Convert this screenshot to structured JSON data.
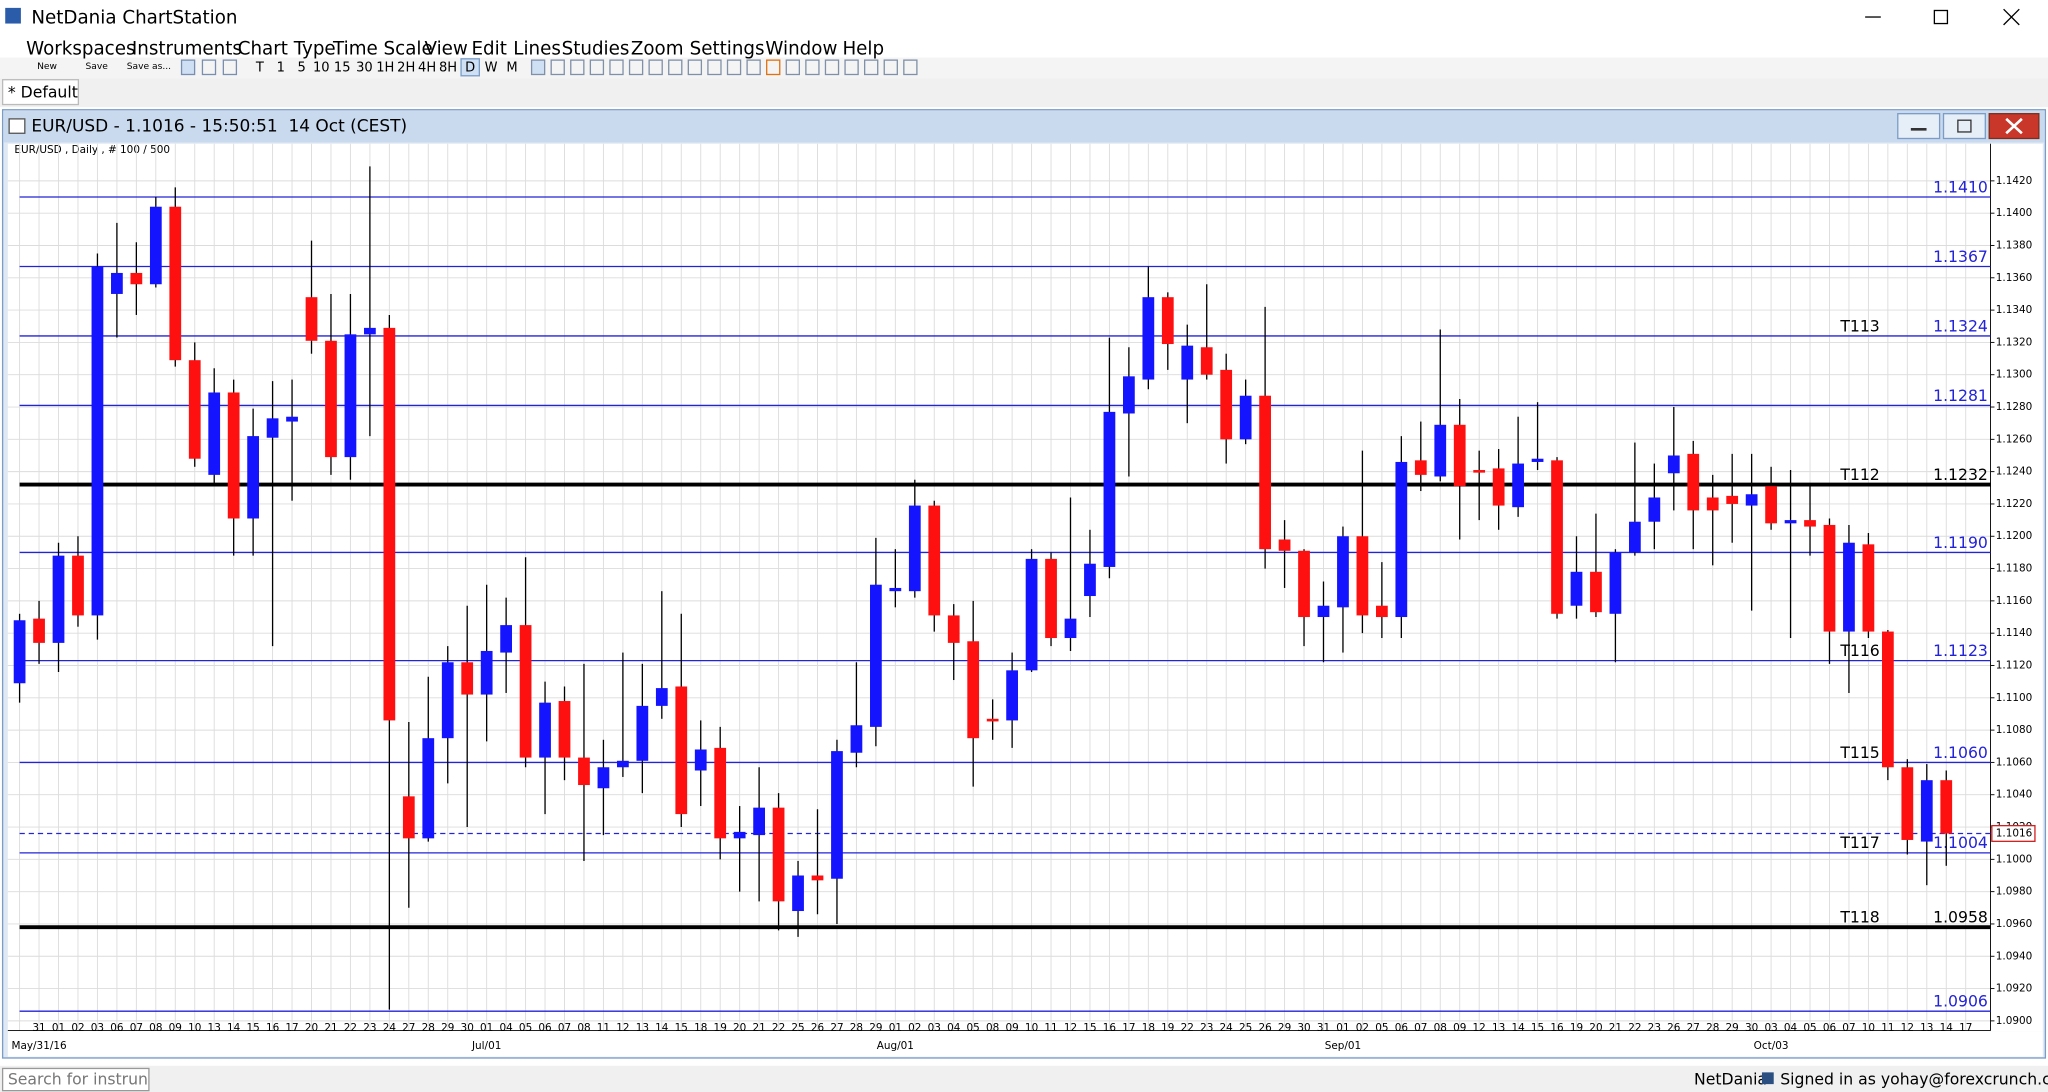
{
  "window": {
    "title": "NetDania ChartStation"
  },
  "menu": [
    "Workspaces",
    "Instruments",
    "Chart Type",
    "Time Scale",
    "View",
    "Edit",
    "Lines",
    "Studies",
    "Zoom",
    "Settings",
    "Window",
    "Help"
  ],
  "toolbar": {
    "file_buttons": [
      "New",
      "Save",
      "Save as..."
    ],
    "intervals": [
      "T",
      "1",
      "5",
      "10",
      "15",
      "30",
      "1H",
      "2H",
      "4H",
      "8H",
      "D",
      "W",
      "M"
    ],
    "active_interval": "D"
  },
  "tab": "* Default",
  "status": {
    "search_placeholder": "Search for instrun",
    "brand": "NetDania",
    "signed_in": "Signed in as yohay@forexcrunch.com"
  },
  "chart_data": {
    "type": "candlestick",
    "title": "EUR/USD - 1.1016 - 15:50:51  14 Oct (CEST)",
    "subtitle": "EUR/USD , Daily , # 100 / 500",
    "categories": [
      null,
      "31",
      "01",
      "02",
      "03",
      "06",
      "07",
      "08",
      "09",
      "10",
      "13",
      "14",
      "15",
      "16",
      "17",
      "20",
      "21",
      "22",
      "23",
      "24",
      "27",
      "28",
      "29",
      "30",
      "01",
      "04",
      "05",
      "06",
      "07",
      "08",
      "11",
      "12",
      "13",
      "14",
      "15",
      "18",
      "19",
      "20",
      "21",
      "22",
      "25",
      "26",
      "27",
      "28",
      "29",
      "01",
      "02",
      "03",
      "04",
      "05",
      "08",
      "09",
      "10",
      "11",
      "12",
      "15",
      "16",
      "17",
      "18",
      "19",
      "22",
      "23",
      "24",
      "25",
      "26",
      "29",
      "30",
      "31",
      "01",
      "02",
      "05",
      "06",
      "07",
      "08",
      "09",
      "12",
      "13",
      "14",
      "15",
      "16",
      "19",
      "20",
      "21",
      "22",
      "23",
      "26",
      "27",
      "28",
      "29",
      "30",
      "03",
      "04",
      "05",
      "06",
      "07",
      "10",
      "11",
      "12",
      "13",
      "14",
      "17"
    ],
    "month_labels": [
      {
        "at": 1,
        "label": "May/31/16"
      },
      {
        "at": 24,
        "label": "Jul/01"
      },
      {
        "at": 45,
        "label": "Aug/01"
      },
      {
        "at": 68,
        "label": "Sep/01"
      },
      {
        "at": 90,
        "label": "Oct/03"
      }
    ],
    "open": [
      1.1109,
      1.1149,
      1.1134,
      1.1188,
      1.1151,
      1.135,
      1.1363,
      1.1356,
      1.1404,
      1.1309,
      1.1238,
      1.1289,
      1.1211,
      1.1261,
      1.1271,
      1.1348,
      1.1321,
      1.1249,
      1.1325,
      1.1329,
      1.1039,
      1.1013,
      1.1075,
      1.1122,
      1.1102,
      1.1128,
      1.1145,
      1.1063,
      1.1098,
      1.1063,
      1.1044,
      1.1057,
      1.1061,
      1.1095,
      1.1107,
      1.1055,
      1.1069,
      1.1013,
      1.1015,
      1.1032,
      1.0968,
      1.099,
      1.0988,
      1.1066,
      1.1082,
      1.1166,
      1.1166,
      1.1219,
      1.1151,
      1.1135,
      1.1087,
      1.1086,
      1.1117,
      1.1186,
      1.1137,
      1.1163,
      1.1181,
      1.1276,
      1.1297,
      1.1348,
      1.1297,
      1.1317,
      1.1303,
      1.126,
      1.1287,
      1.1198,
      1.1191,
      1.115,
      1.1156,
      1.12,
      1.1157,
      1.115,
      1.1247,
      1.1237,
      1.1269,
      1.1241,
      1.1242,
      1.1218,
      1.1246,
      1.1247,
      1.1157,
      1.1178,
      1.1152,
      1.119,
      1.1209,
      1.1239,
      1.1251,
      1.1224,
      1.1225,
      1.1219,
      1.1231,
      1.1208,
      1.121,
      1.1207,
      1.1141,
      1.1195,
      1.1141,
      1.1057,
      1.1011,
      1.1049,
      null
    ],
    "high": [
      1.1152,
      1.116,
      1.1196,
      1.12,
      1.1375,
      1.1394,
      1.1382,
      1.141,
      1.1416,
      1.132,
      1.1304,
      1.1297,
      1.1279,
      1.1296,
      1.1297,
      1.1383,
      1.135,
      1.135,
      1.1429,
      1.1337,
      1.1085,
      1.1113,
      1.1132,
      1.1157,
      1.117,
      1.1162,
      1.1187,
      1.111,
      1.1107,
      1.1121,
      1.1074,
      1.1128,
      1.1121,
      1.1166,
      1.1152,
      1.1086,
      1.1082,
      1.1033,
      1.1057,
      1.1041,
      1.0999,
      1.1031,
      1.1074,
      1.1122,
      1.1199,
      1.1192,
      1.1235,
      1.1222,
      1.1158,
      1.116,
      1.1099,
      1.1128,
      1.1192,
      1.119,
      1.1224,
      1.1204,
      1.1323,
      1.1317,
      1.1367,
      1.1351,
      1.1331,
      1.1356,
      1.1313,
      1.1297,
      1.1342,
      1.121,
      1.1192,
      1.1172,
      1.1206,
      1.1253,
      1.1184,
      1.1262,
      1.1271,
      1.1328,
      1.1285,
      1.1253,
      1.1254,
      1.1274,
      1.1283,
      1.1249,
      1.12,
      1.1214,
      1.1192,
      1.1258,
      1.1245,
      1.128,
      1.1259,
      1.1238,
      1.1251,
      1.1251,
      1.1243,
      1.1241,
      1.1233,
      1.1211,
      1.1207,
      1.1202,
      1.1142,
      1.1062,
      1.1059,
      1.1055,
      null
    ],
    "low": [
      1.1097,
      1.1121,
      1.1116,
      1.1144,
      1.1136,
      1.1323,
      1.1337,
      1.1354,
      1.1305,
      1.1243,
      1.1233,
      1.1188,
      1.1188,
      1.1132,
      1.1222,
      1.1313,
      1.1238,
      1.1235,
      1.1262,
      1.0907,
      1.097,
      1.1011,
      1.1047,
      1.102,
      1.1073,
      1.1103,
      1.1057,
      1.1028,
      1.1049,
      1.0999,
      1.1015,
      1.1051,
      1.1041,
      1.1087,
      1.102,
      1.1033,
      1.1,
      1.098,
      1.0974,
      1.0956,
      1.0952,
      1.0966,
      1.096,
      1.1057,
      1.107,
      1.1156,
      1.1162,
      1.1141,
      1.1111,
      1.1045,
      1.1074,
      1.1069,
      1.1116,
      1.1132,
      1.1129,
      1.115,
      1.1174,
      1.1237,
      1.1291,
      1.1303,
      1.127,
      1.1297,
      1.1245,
      1.1257,
      1.118,
      1.1168,
      1.1132,
      1.1122,
      1.1128,
      1.114,
      1.1137,
      1.1137,
      1.1228,
      1.1234,
      1.1198,
      1.121,
      1.1204,
      1.1212,
      1.1241,
      1.1149,
      1.1149,
      1.115,
      1.1122,
      1.1188,
      1.1192,
      1.1216,
      1.1192,
      1.1182,
      1.1196,
      1.1154,
      1.1204,
      1.1137,
      1.1188,
      1.1121,
      1.1103,
      1.1137,
      1.1049,
      1.1003,
      1.0984,
      1.0996,
      null
    ],
    "close": [
      1.1148,
      1.1134,
      1.1188,
      1.1151,
      1.1367,
      1.1363,
      1.1356,
      1.1404,
      1.1309,
      1.1248,
      1.1289,
      1.1211,
      1.1262,
      1.1273,
      1.1274,
      1.1321,
      1.1249,
      1.1325,
      1.1329,
      1.1086,
      1.1013,
      1.1075,
      1.1122,
      1.1102,
      1.1129,
      1.1145,
      1.1063,
      1.1097,
      1.1063,
      1.1046,
      1.1057,
      1.1061,
      1.1095,
      1.1106,
      1.1028,
      1.1068,
      1.1013,
      1.1017,
      1.1032,
      1.0974,
      1.099,
      1.0987,
      1.1067,
      1.1083,
      1.117,
      1.1168,
      1.1219,
      1.1151,
      1.1134,
      1.1075,
      1.1086,
      1.1117,
      1.1186,
      1.1137,
      1.1149,
      1.1183,
      1.1277,
      1.1299,
      1.1348,
      1.1319,
      1.1318,
      1.13,
      1.126,
      1.1287,
      1.1192,
      1.1191,
      1.115,
      1.1157,
      1.12,
      1.1151,
      1.115,
      1.1246,
      1.1238,
      1.1269,
      1.1231,
      1.124,
      1.1219,
      1.1245,
      1.1248,
      1.1152,
      1.1178,
      1.1153,
      1.119,
      1.1209,
      1.1224,
      1.125,
      1.1216,
      1.1216,
      1.122,
      1.1226,
      1.1208,
      1.121,
      1.1206,
      1.1141,
      1.1196,
      1.1141,
      1.1057,
      1.1012,
      1.1049,
      1.1016,
      null
    ],
    "up_color": "#1414ff",
    "down_color": "#ff1010",
    "ylim": [
      1.0894,
      1.1443
    ],
    "yticks": [
      {
        "value": 1.09,
        "label": "1.0900"
      },
      {
        "value": 1.092,
        "label": "1.0920"
      },
      {
        "value": 1.094,
        "label": "1.0940"
      },
      {
        "value": 1.096,
        "label": "1.0960"
      },
      {
        "value": 1.098,
        "label": "1.0980"
      },
      {
        "value": 1.1,
        "label": "1.1000"
      },
      {
        "value": 1.102,
        "label": "1.1020"
      },
      {
        "value": 1.104,
        "label": "1.1040"
      },
      {
        "value": 1.106,
        "label": "1.1060"
      },
      {
        "value": 1.108,
        "label": "1.1080"
      },
      {
        "value": 1.11,
        "label": "1.1100"
      },
      {
        "value": 1.112,
        "label": "1.1120"
      },
      {
        "value": 1.114,
        "label": "1.1140"
      },
      {
        "value": 1.116,
        "label": "1.1160"
      },
      {
        "value": 1.118,
        "label": "1.1180"
      },
      {
        "value": 1.12,
        "label": "1.1200"
      },
      {
        "value": 1.122,
        "label": "1.1220"
      },
      {
        "value": 1.124,
        "label": "1.1240"
      },
      {
        "value": 1.126,
        "label": "1.1260"
      },
      {
        "value": 1.128,
        "label": "1.1280"
      },
      {
        "value": 1.13,
        "label": "1.1300"
      },
      {
        "value": 1.132,
        "label": "1.1320"
      },
      {
        "value": 1.134,
        "label": "1.1340"
      },
      {
        "value": 1.136,
        "label": "1.1360"
      },
      {
        "value": 1.138,
        "label": "1.1380"
      },
      {
        "value": 1.14,
        "label": "1.1400"
      },
      {
        "value": 1.142,
        "label": "1.1420"
      }
    ],
    "grid": true,
    "levels": [
      {
        "value": 1.141,
        "label": "1.1410",
        "color": "#2323d8"
      },
      {
        "value": 1.1367,
        "color": "#2323d8"
      },
      {
        "value": 1.1324,
        "name": "T113",
        "color": "#2323d8"
      },
      {
        "value": 1.1281,
        "color": "#2323d8"
      },
      {
        "value": 1.1232,
        "name": "T112",
        "color": "#000000",
        "thick": true
      },
      {
        "value": 1.119,
        "label": "1.1190",
        "color": "#2323d8"
      },
      {
        "value": 1.1123,
        "name": "T116",
        "color": "#2323d8"
      },
      {
        "value": 1.106,
        "label": "1.1060",
        "name": "T115",
        "color": "#2323d8"
      },
      {
        "value": 1.1004,
        "name": "T117",
        "color": "#2323d8"
      },
      {
        "value": 1.0958,
        "name": "T118",
        "color": "#000000",
        "thick": true
      },
      {
        "value": 1.0906,
        "color": "#2323d8"
      }
    ],
    "current_price": 1.1016
  }
}
